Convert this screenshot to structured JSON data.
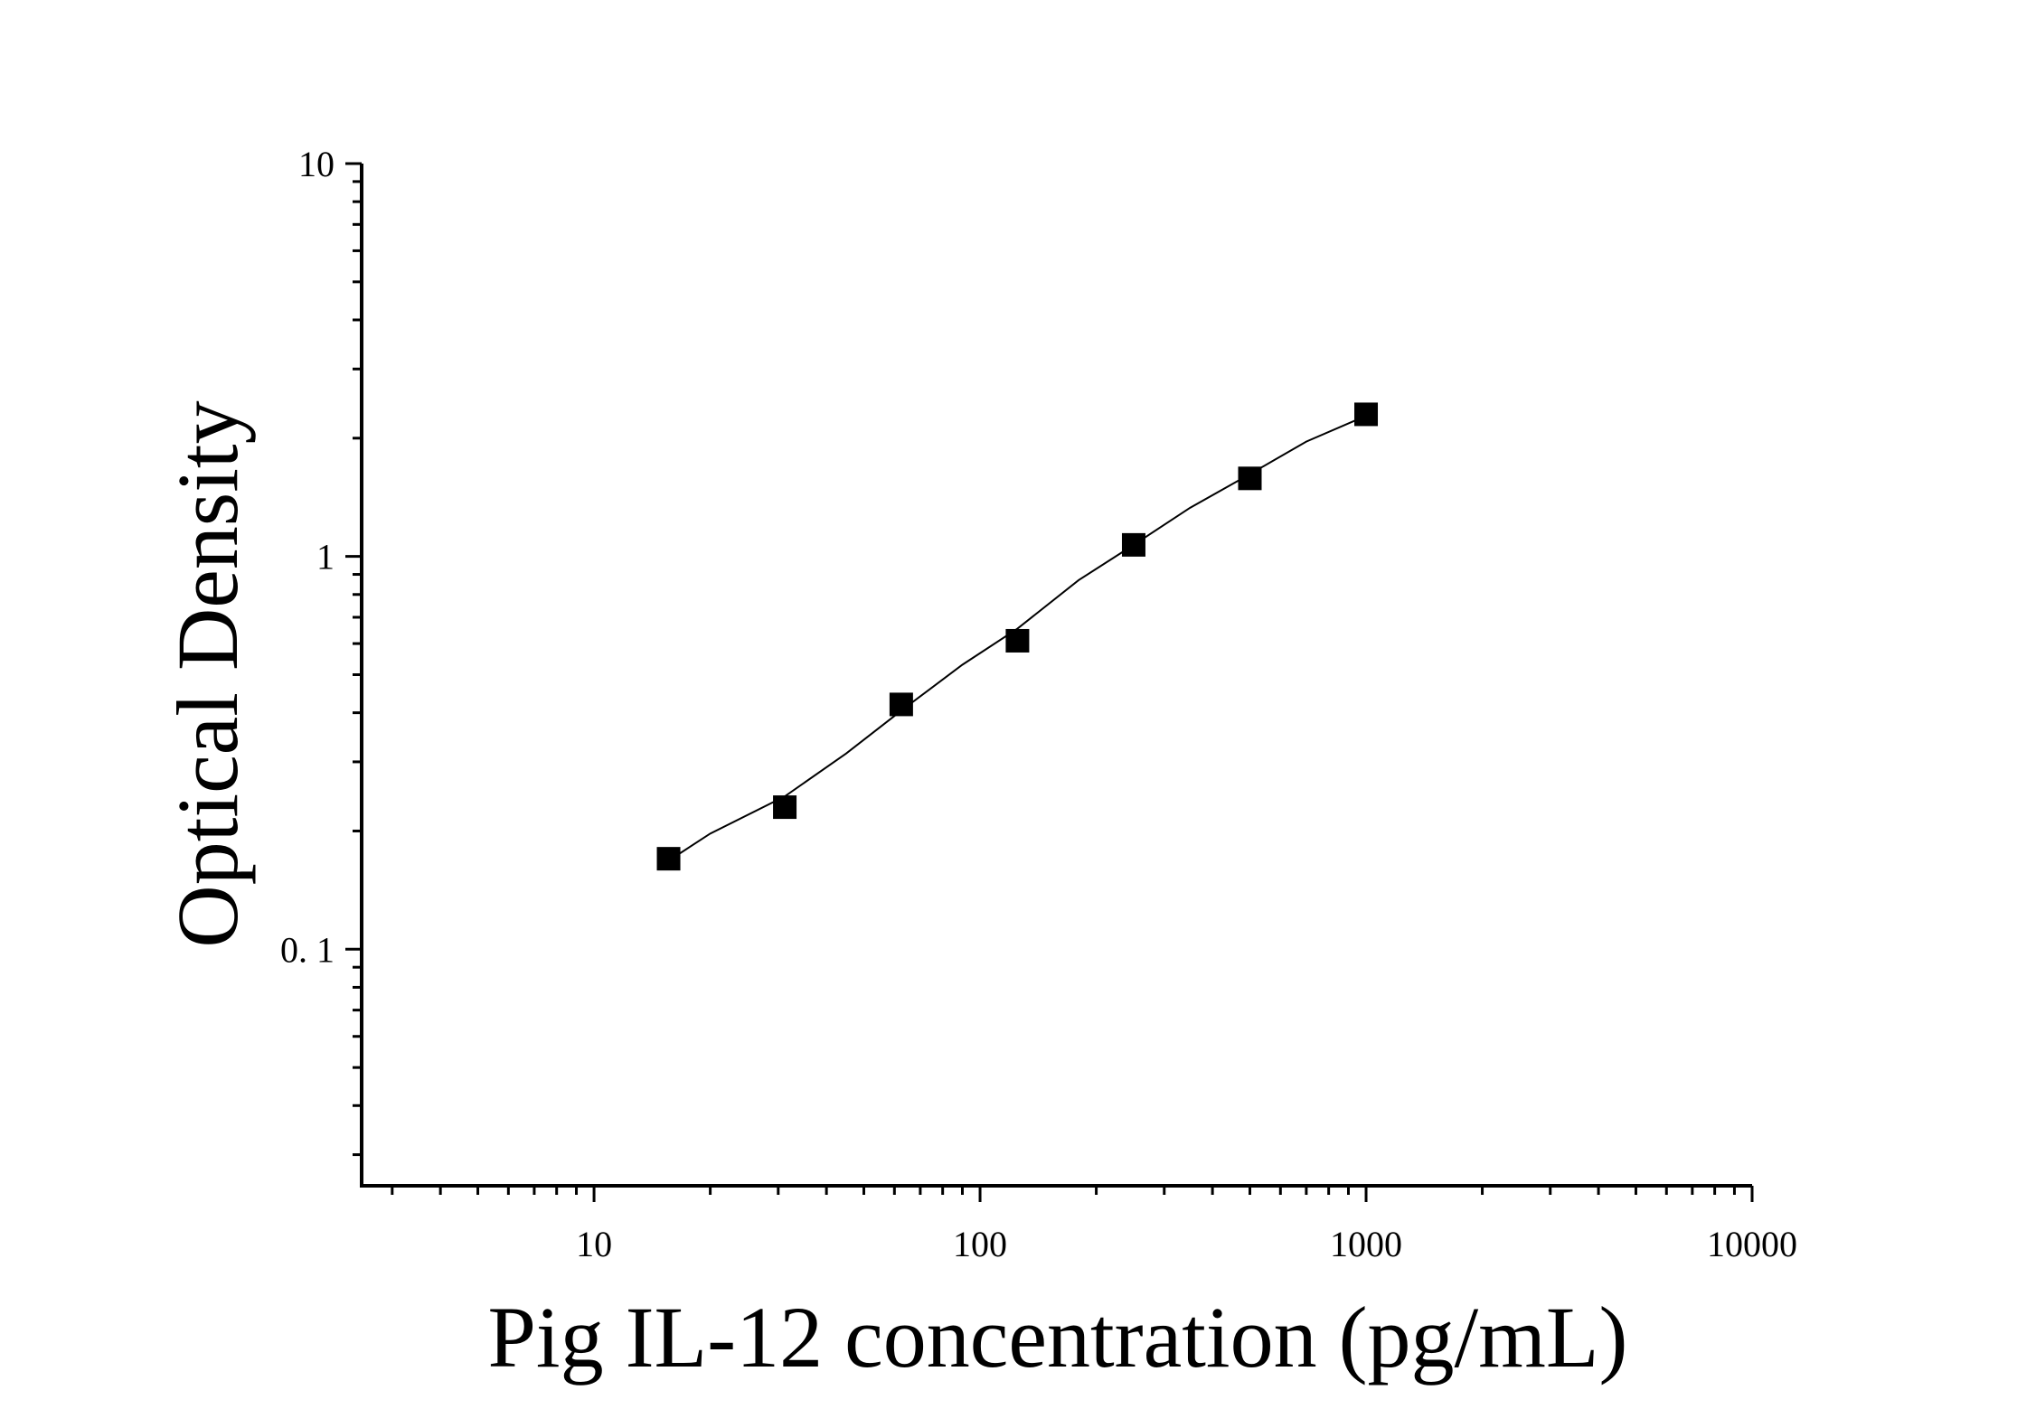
{
  "chart_data": {
    "type": "scatter",
    "title": "",
    "xlabel": "Pig IL-12 concentration (pg/mL)",
    "ylabel": "Optical Density",
    "x_scale": "log",
    "y_scale": "log",
    "xlim": [
      2.5,
      10000
    ],
    "ylim": [
      0.025,
      10
    ],
    "x_ticks": [
      10,
      100,
      1000,
      10000
    ],
    "x_tick_labels": [
      "10",
      "100",
      "1000",
      "10000"
    ],
    "y_ticks": [
      0.1,
      1,
      10
    ],
    "y_tick_labels": [
      "0. 1",
      "1",
      "10"
    ],
    "grid": false,
    "legend": "none",
    "series": [
      {
        "marker": "square",
        "color": "#000000",
        "x": [
          15.6,
          31.2,
          62.5,
          125,
          250,
          500,
          1000
        ],
        "y": [
          0.17,
          0.23,
          0.42,
          0.61,
          1.07,
          1.58,
          2.3
        ]
      }
    ],
    "fit_line": {
      "color": "#000000",
      "x": [
        15.6,
        20,
        31.2,
        45,
        62.5,
        90,
        125,
        180,
        250,
        350,
        500,
        700,
        1000
      ],
      "y": [
        0.168,
        0.197,
        0.245,
        0.315,
        0.405,
        0.53,
        0.655,
        0.87,
        1.07,
        1.33,
        1.62,
        1.96,
        2.28
      ]
    }
  }
}
